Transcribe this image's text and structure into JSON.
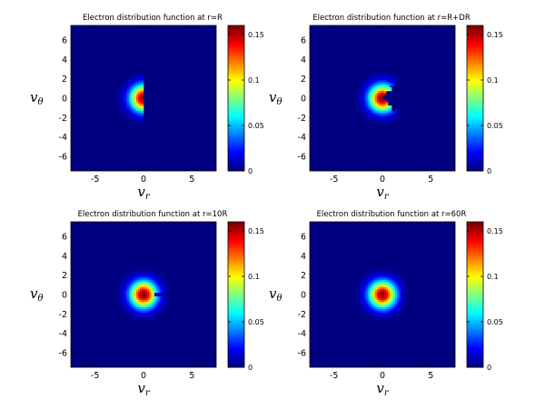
{
  "chart_data": [
    {
      "type": "heatmap",
      "title": "Electron distribution function at r=R",
      "xlabel": "v_r",
      "ylabel": "v_θ",
      "xlim": [
        -7.5,
        7.5
      ],
      "ylim": [
        -7.5,
        7.5
      ],
      "xticks": [
        -5,
        0,
        5
      ],
      "yticks": [
        -6,
        -4,
        -2,
        0,
        2,
        4,
        6
      ],
      "colorbar": {
        "clim": [
          0,
          0.16
        ],
        "ticks": [
          0,
          0.05,
          0.1,
          0.15
        ]
      },
      "colormap": "jet",
      "peak_value": 0.16,
      "distribution": {
        "center": [
          0,
          0
        ],
        "spread": 0.95,
        "cutoff": "half-plane v_r < 0"
      }
    },
    {
      "type": "heatmap",
      "title": "Electron distribution function at r=R+DR",
      "xlabel": "v_r",
      "ylabel": "v_θ",
      "xlim": [
        -7.5,
        7.5
      ],
      "ylim": [
        -7.5,
        7.5
      ],
      "xticks": [
        -5,
        0,
        5
      ],
      "yticks": [
        -6,
        -4,
        -2,
        0,
        2,
        4,
        6
      ],
      "colorbar": {
        "clim": [
          0,
          0.16
        ],
        "ticks": [
          0,
          0.05,
          0.1,
          0.15
        ]
      },
      "colormap": "jet",
      "peak_value": 0.16,
      "distribution": {
        "center": [
          0,
          0
        ],
        "spread": 0.95,
        "cutoff": "wedge opening toward +v_r"
      }
    },
    {
      "type": "heatmap",
      "title": "Electron distribution function at r=10R",
      "xlabel": "v_r",
      "ylabel": "v_θ",
      "xlim": [
        -7.5,
        7.5
      ],
      "ylim": [
        -7.5,
        7.5
      ],
      "xticks": [
        -5,
        0,
        5
      ],
      "yticks": [
        -6,
        -4,
        -2,
        0,
        2,
        4,
        6
      ],
      "colorbar": {
        "clim": [
          0,
          0.16
        ],
        "ticks": [
          0,
          0.05,
          0.1,
          0.15
        ]
      },
      "colormap": "jet",
      "peak_value": 0.16,
      "distribution": {
        "center": [
          0,
          0
        ],
        "spread": 0.95,
        "cutoff": "narrow wedge along +v_r"
      }
    },
    {
      "type": "heatmap",
      "title": "Electron distribution function at r=60R",
      "xlabel": "v_r",
      "ylabel": "v_θ",
      "xlim": [
        -7.5,
        7.5
      ],
      "ylim": [
        -7.5,
        7.5
      ],
      "xticks": [
        -5,
        0,
        5
      ],
      "yticks": [
        -6,
        -4,
        -2,
        0,
        2,
        4,
        6
      ],
      "colorbar": {
        "clim": [
          0,
          0.16
        ],
        "ticks": [
          0,
          0.05,
          0.1,
          0.15
        ]
      },
      "colormap": "jet",
      "peak_value": 0.16,
      "distribution": {
        "center": [
          0,
          0
        ],
        "spread": 0.95,
        "cutoff": "very narrow wedge along +v_r"
      }
    }
  ]
}
